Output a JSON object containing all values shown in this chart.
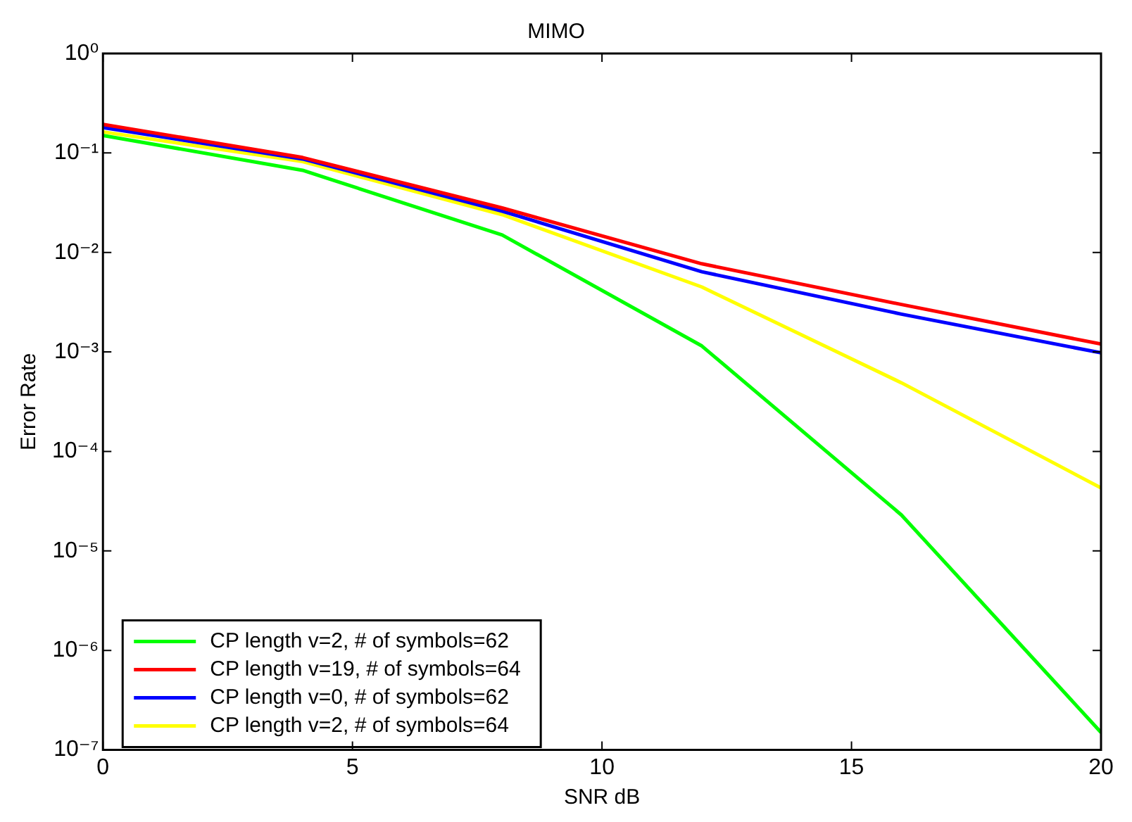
{
  "chart_data": {
    "type": "line",
    "title": "MIMO",
    "xlabel": "SNR dB",
    "ylabel": "Error Rate",
    "x": [
      0,
      4,
      8,
      12,
      16,
      20
    ],
    "series": [
      {
        "name": "CP length v=2, # of symbols=62",
        "color": "#00ff00",
        "values": [
          0.15,
          0.067,
          0.015,
          0.00115,
          2.3e-05,
          1.5e-07
        ]
      },
      {
        "name": "CP length v=19, # of symbols=64",
        "color": "#ff0000",
        "values": [
          0.194,
          0.09,
          0.028,
          0.0077,
          0.003,
          0.0012
        ]
      },
      {
        "name": "CP length v=0, # of symbols=62",
        "color": "#0000ff",
        "values": [
          0.18,
          0.087,
          0.026,
          0.0064,
          0.0024,
          0.00098
        ]
      },
      {
        "name": "CP length v=2, # of symbols=64",
        "color": "#ffff00",
        "values": [
          0.163,
          0.082,
          0.024,
          0.0045,
          0.00049,
          4.3e-05
        ]
      }
    ],
    "xlim": [
      0,
      20
    ],
    "xticks": [
      0,
      5,
      10,
      15,
      20
    ],
    "ylim": [
      1e-07,
      1
    ],
    "yticks": [
      {
        "value": 1e-07,
        "label": "10⁻⁷"
      },
      {
        "value": 1e-06,
        "label": "10⁻⁶"
      },
      {
        "value": 1e-05,
        "label": "10⁻⁵"
      },
      {
        "value": 0.0001,
        "label": "10⁻⁴"
      },
      {
        "value": 0.001,
        "label": "10⁻³"
      },
      {
        "value": 0.01,
        "label": "10⁻²"
      },
      {
        "value": 0.1,
        "label": "10⁻¹"
      },
      {
        "value": 1,
        "label": "10⁰"
      }
    ],
    "log": "y",
    "grid": false,
    "legend": "bottom left",
    "marker": "none",
    "line_style": "solid"
  }
}
